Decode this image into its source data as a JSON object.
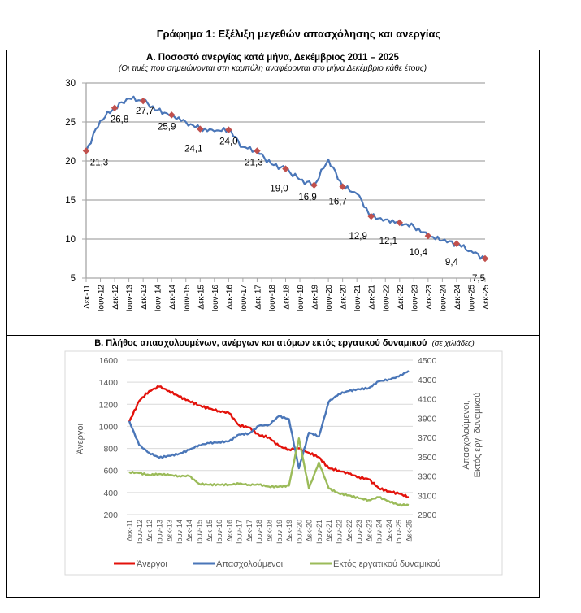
{
  "page": {
    "main_title": "Γράφημα 1: Εξέλιξη μεγεθών απασχόλησης και ανεργίας"
  },
  "chart_data": [
    {
      "id": "A",
      "type": "line",
      "title": "Α. Ποσοστό ανεργίας κατά μήνα, Δεκέμβριος 2011 – 2025",
      "subtitle": "(Οι τιμές που σημειώνονται στη καμπύλη αναφέρονται στο μήνα Δεκέμβριο κάθε έτους)",
      "xlabel": "",
      "ylabel": "",
      "ylim": [
        5,
        30
      ],
      "yticks": [
        5,
        10,
        15,
        20,
        25,
        30
      ],
      "grid": true,
      "x": [
        "Δεκ-11",
        "Ιουν-12",
        "Δεκ-12",
        "Ιουν-13",
        "Δεκ-13",
        "Ιουν-14",
        "Δεκ-14",
        "Ιουν-15",
        "Δεκ-15",
        "Ιουν-16",
        "Δεκ-16",
        "Ιουν-17",
        "Δεκ-17",
        "Ιουν-18",
        "Δεκ-18",
        "Ιουν-19",
        "Δεκ-19",
        "Ιουν-20",
        "Δεκ-20",
        "Ιουν-21",
        "Δεκ-21",
        "Ιουν-22",
        "Δεκ-22",
        "Ιουν-23",
        "Δεκ-23",
        "Ιουν-24",
        "Δεκ-24",
        "Ιουν-25",
        "Δεκ-25"
      ],
      "series": [
        {
          "name": "Ποσοστό ανεργίας",
          "color": "#4a76b8",
          "values": [
            21.3,
            25.2,
            26.8,
            28.0,
            27.7,
            26.5,
            25.9,
            25.0,
            24.1,
            23.8,
            24.0,
            21.8,
            21.3,
            19.6,
            19.0,
            17.6,
            16.9,
            20.2,
            16.7,
            15.8,
            12.9,
            12.5,
            12.1,
            11.6,
            10.4,
            9.8,
            9.4,
            8.5,
            7.5
          ]
        }
      ],
      "markers": {
        "color": "#c0504d",
        "points": [
          {
            "x": "Δεκ-11",
            "value": 21.3,
            "label": "21,3"
          },
          {
            "x": "Δεκ-12",
            "value": 26.8,
            "label": "26,8"
          },
          {
            "x": "Δεκ-13",
            "value": 27.7,
            "label": "27,7"
          },
          {
            "x": "Δεκ-14",
            "value": 25.9,
            "label": "25,9"
          },
          {
            "x": "Δεκ-15",
            "value": 24.1,
            "label": "24,1"
          },
          {
            "x": "Δεκ-16",
            "value": 24.0,
            "label": "24,0"
          },
          {
            "x": "Δεκ-17",
            "value": 21.3,
            "label": "21,3"
          },
          {
            "x": "Δεκ-18",
            "value": 19.0,
            "label": "19,0"
          },
          {
            "x": "Δεκ-19",
            "value": 16.9,
            "label": "16,9"
          },
          {
            "x": "Δεκ-20",
            "value": 16.7,
            "label": "16,7"
          },
          {
            "x": "Δεκ-21",
            "value": 12.9,
            "label": "12,9"
          },
          {
            "x": "Δεκ-22",
            "value": 12.1,
            "label": "12,1"
          },
          {
            "x": "Δεκ-23",
            "value": 10.4,
            "label": "10,4"
          },
          {
            "x": "Δεκ-24",
            "value": 9.4,
            "label": "9,4"
          },
          {
            "x": "Δεκ-25",
            "value": 7.5,
            "label": "7,5"
          }
        ]
      }
    },
    {
      "id": "B",
      "type": "line",
      "title": "Β. Πλήθος απασχολουμένων, ανέργων και ατόμων εκτός εργατικού δυναμικού",
      "title_note": "(σε χιλιάδες)",
      "ylabel_left": "Άνεργοι",
      "ylabel_right": [
        "Απασχολούμενοι,",
        "Εκτός εργ. δυναμικού"
      ],
      "ylim_left": [
        200,
        1600
      ],
      "yticks_left": [
        200,
        400,
        600,
        800,
        1000,
        1200,
        1400,
        1600
      ],
      "ylim_right": [
        2900,
        4500
      ],
      "yticks_right": [
        2900,
        3100,
        3300,
        3500,
        3700,
        3900,
        4100,
        4300,
        4500
      ],
      "grid": true,
      "legend_position": "bottom",
      "x": [
        "Δεκ-11",
        "Ιουν-12",
        "Δεκ-12",
        "Ιουν-13",
        "Δεκ-13",
        "Ιουν-14",
        "Δεκ-14",
        "Ιουν-15",
        "Δεκ-15",
        "Ιουν-16",
        "Δεκ-16",
        "Ιουν-17",
        "Δεκ-17",
        "Ιουν-18",
        "Δεκ-18",
        "Ιουν-19",
        "Δεκ-19",
        "Ιουν-20",
        "Δεκ-20",
        "Ιουν-21",
        "Δεκ-21",
        "Ιουν-22",
        "Δεκ-22",
        "Ιουν-23",
        "Δεκ-23",
        "Ιουν-24",
        "Δεκ-24",
        "Ιουν-25",
        "Δεκ-25"
      ],
      "series": [
        {
          "name": "Άνεργοι",
          "axis": "left",
          "color": "#e3120b",
          "values": [
            1040,
            1230,
            1320,
            1360,
            1320,
            1270,
            1230,
            1190,
            1160,
            1140,
            1120,
            1010,
            990,
            920,
            900,
            820,
            790,
            800,
            760,
            720,
            620,
            600,
            570,
            540,
            520,
            440,
            410,
            390,
            360
          ]
        },
        {
          "name": "Απασχολούμενοι",
          "axis": "right",
          "color": "#4a76b8",
          "values": [
            3870,
            3620,
            3540,
            3490,
            3510,
            3530,
            3570,
            3620,
            3640,
            3650,
            3660,
            3730,
            3740,
            3820,
            3830,
            3920,
            3890,
            3380,
            3750,
            3710,
            4070,
            4150,
            4180,
            4200,
            4210,
            4280,
            4300,
            4330,
            4390
          ]
        },
        {
          "name": "Εκτός εργατικού δυναμικού",
          "axis": "right",
          "color": "#9bbb59",
          "values": [
            3340,
            3330,
            3310,
            3320,
            3310,
            3300,
            3300,
            3220,
            3210,
            3210,
            3210,
            3220,
            3210,
            3210,
            3190,
            3190,
            3200,
            3690,
            3170,
            3440,
            3170,
            3120,
            3100,
            3070,
            3050,
            3080,
            3040,
            3000,
            3000
          ]
        }
      ]
    }
  ]
}
